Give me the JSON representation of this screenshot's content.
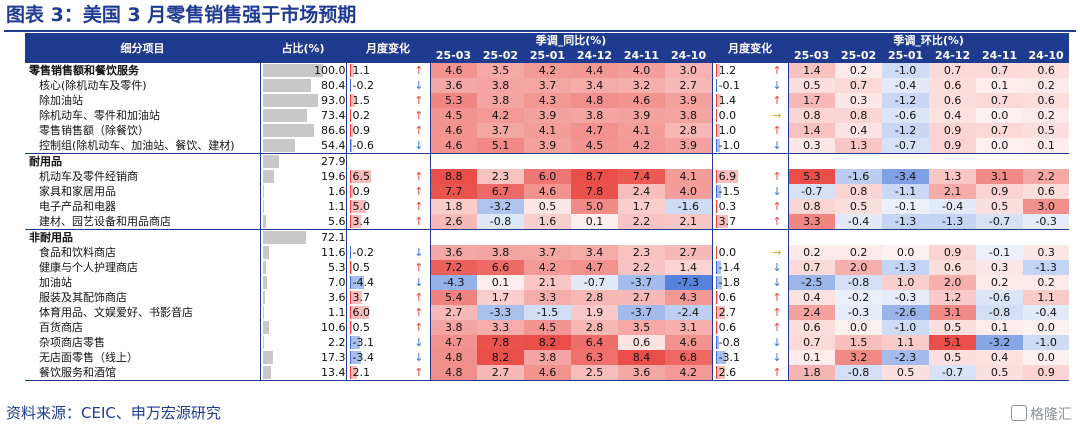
{
  "title": "图表 3：美国 3 月零售销售强于市场预期",
  "source": "资料来源：CEIC、申万宏源研究",
  "logo_text": "格隆汇",
  "headers": {
    "category": "细分项目",
    "share": "占比(%)",
    "mom1": "月度变化",
    "yoy_group": "季调_同比(%)",
    "mom2": "月度变化",
    "mom_group": "季调_环比(%)",
    "months": [
      "25-03",
      "25-02",
      "25-01",
      "24-12",
      "24-11",
      "24-10"
    ]
  },
  "colors": {
    "header_bg": "#1f3b8f",
    "pos": "#e8413c",
    "neg": "#3d6fd6"
  },
  "rows": [
    {
      "name": "零售销售额和餐饮服务",
      "type": "main",
      "share": "100.0",
      "m1": "1.1",
      "a1": "up",
      "yoy": [
        "4.6",
        "3.5",
        "4.2",
        "4.4",
        "4.0",
        "3.0"
      ],
      "m2": "1.2",
      "a2": "up",
      "mom": [
        "1.4",
        "0.2",
        "-1.0",
        "0.7",
        "0.7",
        "0.6"
      ]
    },
    {
      "name": "核心(除机动车及零件)",
      "type": "sub",
      "share": "80.4",
      "m1": "-0.2",
      "a1": "down",
      "yoy": [
        "3.6",
        "3.8",
        "3.7",
        "3.4",
        "3.2",
        "2.7"
      ],
      "m2": "-0.1",
      "a2": "down",
      "mom": [
        "0.5",
        "0.7",
        "-0.4",
        "0.6",
        "0.1",
        "0.2"
      ]
    },
    {
      "name": "除加油站",
      "type": "sub",
      "share": "93.0",
      "m1": "1.5",
      "a1": "up",
      "yoy": [
        "5.3",
        "3.8",
        "4.3",
        "4.8",
        "4.6",
        "3.9"
      ],
      "m2": "1.4",
      "a2": "up",
      "mom": [
        "1.7",
        "0.3",
        "-1.2",
        "0.6",
        "0.7",
        "0.6"
      ]
    },
    {
      "name": "除机动车、零件和加油站",
      "type": "sub",
      "share": "73.4",
      "m1": "0.2",
      "a1": "up",
      "yoy": [
        "4.5",
        "4.2",
        "3.9",
        "3.8",
        "3.9",
        "3.8"
      ],
      "m2": "0.0",
      "a2": "flat",
      "mom": [
        "0.8",
        "0.8",
        "-0.6",
        "0.4",
        "0.0",
        "0.2"
      ]
    },
    {
      "name": "零售销售额（除餐饮）",
      "type": "sub",
      "share": "86.6",
      "m1": "0.9",
      "a1": "up",
      "yoy": [
        "4.6",
        "3.7",
        "4.1",
        "4.7",
        "4.1",
        "2.8"
      ],
      "m2": "1.0",
      "a2": "up",
      "mom": [
        "1.4",
        "0.4",
        "-1.2",
        "0.9",
        "0.7",
        "0.5"
      ]
    },
    {
      "name": "控制组(除机动车、加油站、餐饮、建材)",
      "type": "sub",
      "share": "54.4",
      "m1": "-0.6",
      "a1": "down",
      "yoy": [
        "4.6",
        "5.1",
        "3.9",
        "4.5",
        "4.2",
        "3.9"
      ],
      "m2": "-1.0",
      "a2": "down",
      "mom": [
        "0.3",
        "1.3",
        "-0.7",
        "0.9",
        "0.0",
        "0.1"
      ]
    },
    {
      "name": "耐用品",
      "type": "grp",
      "share": "27.9",
      "m1": "",
      "a1": "",
      "yoy": [
        "",
        "",
        "",
        "",
        "",
        ""
      ],
      "m2": "",
      "a2": "",
      "mom": [
        "",
        "",
        "",
        "",
        "",
        ""
      ]
    },
    {
      "name": "机动车及零件经销商",
      "type": "sub",
      "share": "19.6",
      "m1": "6.5",
      "a1": "up",
      "yoy": [
        "8.8",
        "2.3",
        "6.0",
        "8.7",
        "7.4",
        "4.1"
      ],
      "m2": "6.9",
      "a2": "up",
      "mom": [
        "5.3",
        "-1.6",
        "-3.4",
        "1.3",
        "3.1",
        "2.2"
      ]
    },
    {
      "name": "家具和家居用品",
      "type": "sub",
      "share": "1.6",
      "m1": "0.9",
      "a1": "up",
      "yoy": [
        "7.7",
        "6.7",
        "4.6",
        "7.8",
        "2.4",
        "4.0"
      ],
      "m2": "-1.5",
      "a2": "down",
      "mom": [
        "-0.7",
        "0.8",
        "-1.1",
        "2.1",
        "0.9",
        "0.6"
      ]
    },
    {
      "name": "电子产品和电器",
      "type": "sub",
      "share": "1.1",
      "m1": "5.0",
      "a1": "up",
      "yoy": [
        "1.8",
        "-3.2",
        "0.5",
        "5.0",
        "1.7",
        "-1.6"
      ],
      "m2": "0.3",
      "a2": "up",
      "mom": [
        "0.8",
        "0.5",
        "-0.1",
        "-0.4",
        "0.5",
        "3.0"
      ]
    },
    {
      "name": "建材、园艺设备和用品商店",
      "type": "sub",
      "share": "5.6",
      "m1": "3.4",
      "a1": "up",
      "yoy": [
        "2.6",
        "-0.8",
        "1.6",
        "0.1",
        "2.2",
        "2.1"
      ],
      "m2": "3.7",
      "a2": "up",
      "mom": [
        "3.3",
        "-0.4",
        "-1.3",
        "-1.3",
        "-0.7",
        "-0.3"
      ]
    },
    {
      "name": "非耐用品",
      "type": "grp",
      "share": "72.1",
      "m1": "",
      "a1": "",
      "yoy": [
        "",
        "",
        "",
        "",
        "",
        ""
      ],
      "m2": "",
      "a2": "",
      "mom": [
        "",
        "",
        "",
        "",
        "",
        ""
      ]
    },
    {
      "name": "食品和饮料商店",
      "type": "sub",
      "share": "11.6",
      "m1": "-0.2",
      "a1": "down",
      "yoy": [
        "3.6",
        "3.8",
        "3.7",
        "3.4",
        "2.3",
        "2.7"
      ],
      "m2": "0.0",
      "a2": "flat",
      "mom": [
        "0.2",
        "0.2",
        "0.0",
        "0.9",
        "-0.1",
        "0.3"
      ]
    },
    {
      "name": "健康与个人护理商店",
      "type": "sub",
      "share": "5.3",
      "m1": "0.5",
      "a1": "up",
      "yoy": [
        "7.2",
        "6.6",
        "4.2",
        "4.7",
        "2.2",
        "1.4"
      ],
      "m2": "-1.4",
      "a2": "down",
      "mom": [
        "0.7",
        "2.0",
        "-1.3",
        "0.6",
        "0.3",
        "-1.3"
      ]
    },
    {
      "name": "加油站",
      "type": "sub",
      "share": "7.0",
      "m1": "-4.4",
      "a1": "down",
      "yoy": [
        "-4.3",
        "0.1",
        "2.1",
        "-0.7",
        "-3.7",
        "-7.3"
      ],
      "m2": "-1.8",
      "a2": "down",
      "mom": [
        "-2.5",
        "-0.8",
        "1.0",
        "2.0",
        "0.2",
        "0.2"
      ]
    },
    {
      "name": "服装及其配饰商店",
      "type": "sub",
      "share": "3.6",
      "m1": "3.7",
      "a1": "up",
      "yoy": [
        "5.4",
        "1.7",
        "3.3",
        "2.8",
        "2.7",
        "4.3"
      ],
      "m2": "0.6",
      "a2": "up",
      "mom": [
        "0.4",
        "-0.2",
        "-0.3",
        "1.2",
        "-0.6",
        "1.1"
      ]
    },
    {
      "name": "体育用品、文娱爱好、书影音店",
      "type": "sub",
      "share": "1.1",
      "m1": "6.0",
      "a1": "up",
      "yoy": [
        "2.7",
        "-3.3",
        "-1.5",
        "1.9",
        "-3.7",
        "-2.4"
      ],
      "m2": "2.7",
      "a2": "up",
      "mom": [
        "2.4",
        "-0.3",
        "-2.6",
        "3.1",
        "-0.8",
        "-0.4"
      ]
    },
    {
      "name": "百货商店",
      "type": "sub",
      "share": "10.6",
      "m1": "0.5",
      "a1": "up",
      "yoy": [
        "3.8",
        "3.3",
        "4.5",
        "2.8",
        "3.5",
        "3.1"
      ],
      "m2": "0.6",
      "a2": "up",
      "mom": [
        "0.6",
        "0.0",
        "-1.0",
        "0.5",
        "0.1",
        "0.0"
      ]
    },
    {
      "name": "杂项商店零售",
      "type": "sub",
      "share": "2.2",
      "m1": "-3.1",
      "a1": "down",
      "yoy": [
        "4.7",
        "7.8",
        "8.2",
        "6.4",
        "0.6",
        "4.6"
      ],
      "m2": "-0.8",
      "a2": "down",
      "mom": [
        "0.7",
        "1.5",
        "1.1",
        "5.1",
        "-3.2",
        "-1.0"
      ]
    },
    {
      "name": "无店面零售（线上）",
      "type": "sub",
      "share": "17.3",
      "m1": "-3.4",
      "a1": "down",
      "yoy": [
        "4.8",
        "8.2",
        "3.8",
        "6.3",
        "8.4",
        "6.8"
      ],
      "m2": "-3.1",
      "a2": "down",
      "mom": [
        "0.1",
        "3.2",
        "-2.3",
        "0.5",
        "0.4",
        "0.0"
      ]
    },
    {
      "name": "餐饮服务和酒馆",
      "type": "sub",
      "share": "13.4",
      "m1": "2.1",
      "a1": "up",
      "yoy": [
        "4.8",
        "2.7",
        "4.6",
        "2.5",
        "3.6",
        "4.2"
      ],
      "m2": "2.6",
      "a2": "up",
      "mom": [
        "1.8",
        "-0.8",
        "0.5",
        "-0.7",
        "0.5",
        "0.9"
      ]
    }
  ]
}
